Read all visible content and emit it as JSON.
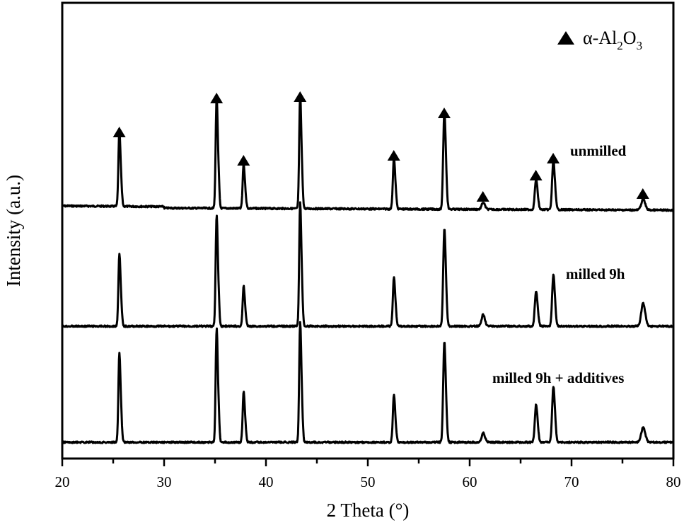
{
  "chart_data": {
    "type": "line",
    "title": "",
    "xlabel": "2 Theta (°)",
    "ylabel": "Intensity (a.u.)",
    "xlim": [
      20,
      80
    ],
    "xticks": [
      20,
      30,
      40,
      50,
      60,
      70,
      80
    ],
    "xtick_labels": [
      "20",
      "30",
      "40",
      "50",
      "60",
      "70",
      "80"
    ],
    "yticks": [],
    "grid": false,
    "legend": {
      "position": "top-right",
      "entries": [
        {
          "marker": "filled-triangle",
          "label": "α-Al2O3",
          "label_main": "α-Al",
          "sub1": "2",
          "mid": "O",
          "sub2": "3"
        }
      ]
    },
    "marker_color": "#000000",
    "line_color": "#000000",
    "peak_positions_2theta": [
      25.6,
      35.15,
      37.8,
      43.35,
      52.55,
      57.5,
      61.3,
      66.5,
      68.2,
      77.0
    ],
    "series": [
      {
        "name": "unmilled",
        "label": "unmilled",
        "offset_baseline": 297,
        "baseline_tilt": 6,
        "intensities": [
          99,
          147,
          59,
          149,
          66,
          126,
          8,
          38,
          62,
          12
        ],
        "marked_peaks": true
      },
      {
        "name": "milled 9h",
        "label": "milled 9h",
        "offset_baseline": 461,
        "baseline_tilt": 0,
        "intensities": [
          96,
          147,
          53,
          163,
          64,
          124,
          14,
          44,
          64,
          26
        ],
        "marked_peaks": false
      },
      {
        "name": "milled 9h + additives",
        "label": "milled 9h + additives",
        "offset_baseline": 625,
        "baseline_tilt": 0,
        "intensities": [
          118,
          151,
          67,
          159,
          61,
          128,
          11,
          47,
          70,
          17
        ],
        "marked_peaks": false
      }
    ],
    "annotations": [
      {
        "type": "triangle-marker",
        "series": "unmilled",
        "on_peaks": "all"
      }
    ]
  }
}
